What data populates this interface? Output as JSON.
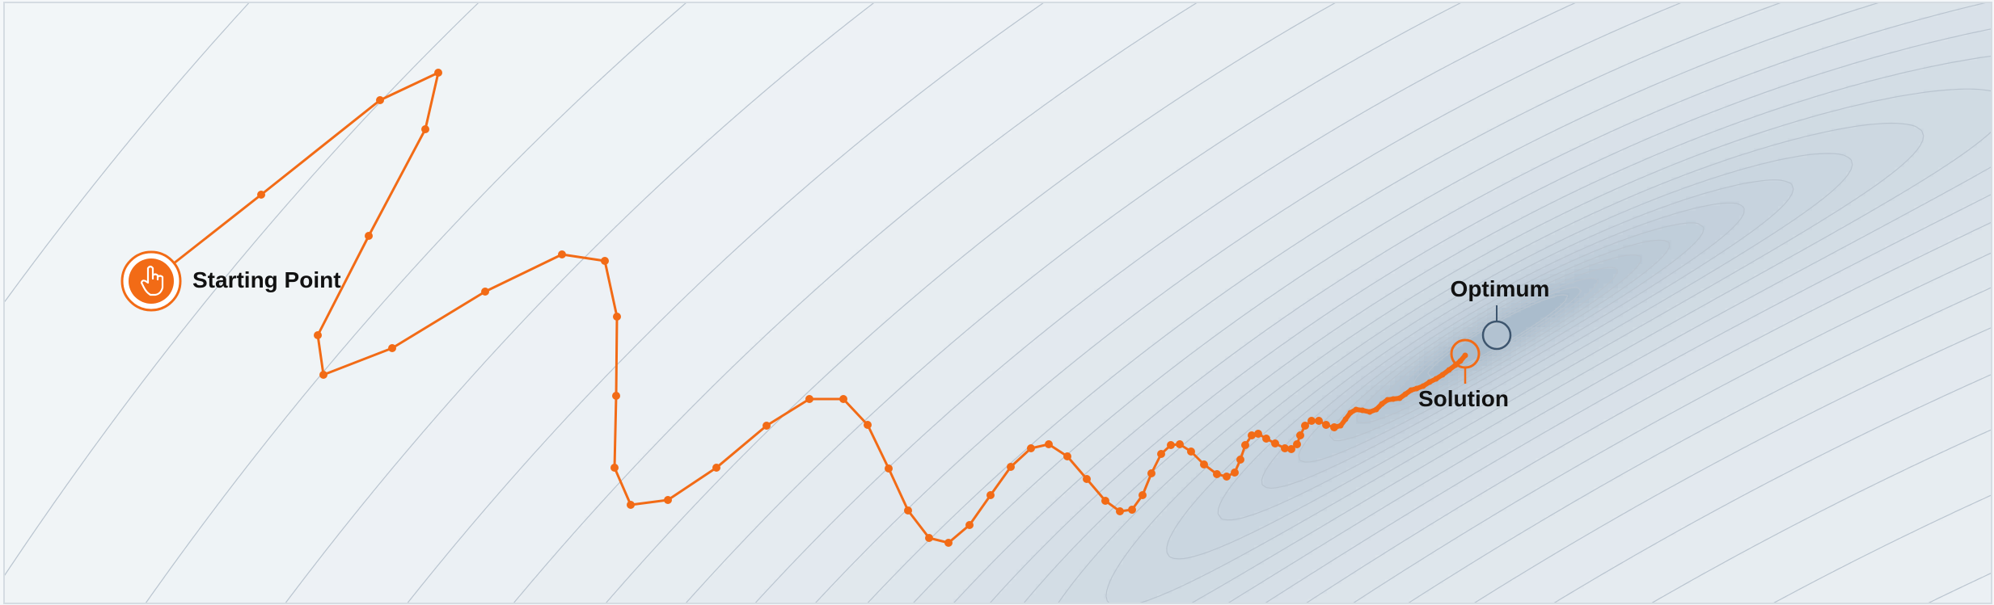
{
  "labels": {
    "start": "Starting Point",
    "optimum": "Optimum",
    "solution": "Solution"
  },
  "icons": {
    "start": "hand-pointer-icon"
  },
  "colors": {
    "path": "#f26b16",
    "contour_line": "#b9c4cf",
    "optimum_ring": "#3d556e",
    "fill_light": "#f4f7f9",
    "fill_dark": "#aabccc"
  }
}
